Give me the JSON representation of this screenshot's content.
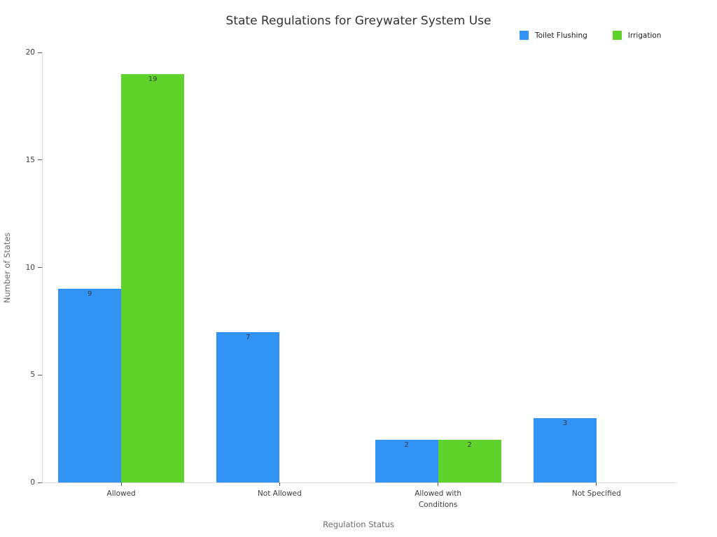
{
  "chart_data": {
    "type": "bar",
    "title": "State Regulations for Greywater System Use",
    "xlabel": "Regulation Status",
    "ylabel": "Number of States",
    "categories": [
      "Allowed",
      "Not Allowed",
      "Allowed with Conditions",
      "Not Specified"
    ],
    "series": [
      {
        "name": "Toilet Flushing",
        "color": "#3194f4",
        "values": [
          9,
          7,
          2,
          3
        ]
      },
      {
        "name": "Irrigation",
        "color": "#5fd32b",
        "values": [
          19,
          0,
          2,
          0
        ]
      }
    ],
    "ylim": [
      0,
      20
    ],
    "yticks": [
      0,
      5,
      10,
      15,
      20
    ],
    "bar_value_labels": [
      [
        "9",
        "7",
        "2",
        "3"
      ],
      [
        "19",
        "",
        "2",
        ""
      ]
    ],
    "legend_position": "top-right",
    "grid": false
  }
}
